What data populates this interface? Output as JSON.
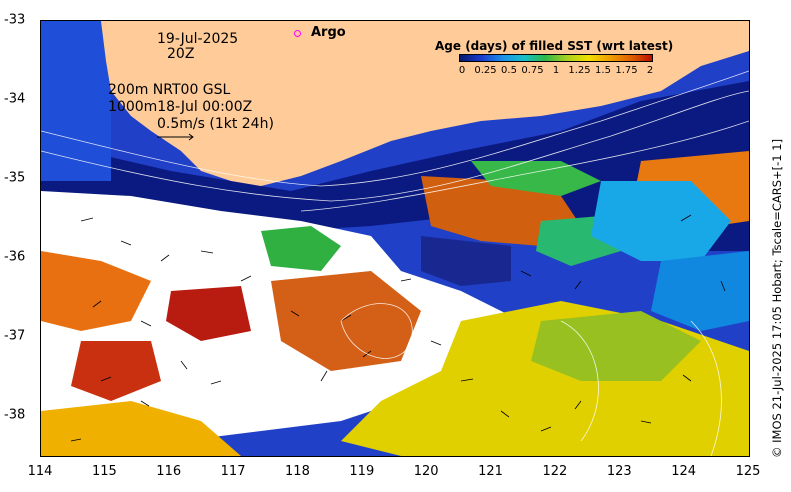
{
  "map": {
    "timestamp_date": "19-Jul-2025",
    "timestamp_hour": "20Z",
    "depth_line_1": "200m  NRT00 GSL",
    "depth_line_2": "1000m18-Jul 00:00Z",
    "scale_label": "0.5m/s (1kt 24h)",
    "argo_label": "Argo",
    "argo_color": "#ff00ff",
    "land_color": "#ffcc99",
    "legend": {
      "title": "Age (days) of filled SST (wrt latest)",
      "ticks": [
        "0",
        "0.25",
        "0.5",
        "0.75",
        "1",
        "1.25",
        "1.5",
        "1.75",
        "2"
      ],
      "range": [
        0,
        2
      ]
    },
    "credit": "© IMOS 21-Jul-2025 17:05 Hobart; Tscale=CARS+[-1 1]"
  },
  "axes": {
    "x_ticks": [
      "114",
      "115",
      "116",
      "117",
      "118",
      "119",
      "120",
      "121",
      "122",
      "123",
      "124",
      "125"
    ],
    "y_ticks": [
      "-33",
      "-34",
      "-35",
      "-36",
      "-37",
      "-38"
    ],
    "xlim": [
      114,
      125
    ],
    "ylim": [
      -38.5,
      -33
    ]
  }
}
